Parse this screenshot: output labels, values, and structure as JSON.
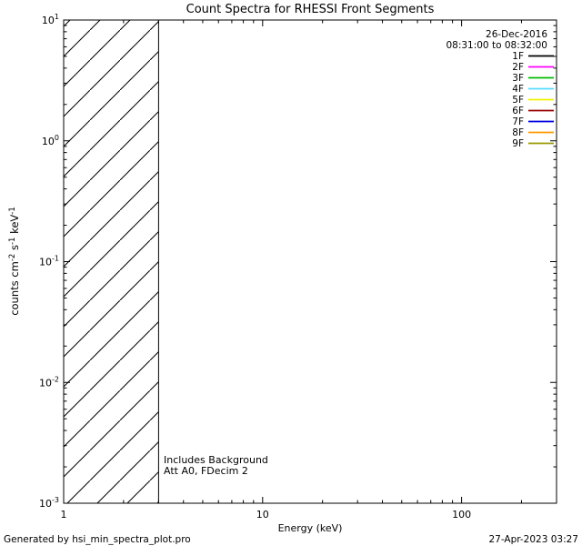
{
  "chart_data": {
    "type": "line",
    "title": "Count Spectra for RHESSI Front Segments",
    "xlabel": "Energy (keV)",
    "ylabel_parts": [
      {
        "text": "counts cm",
        "sup": false
      },
      {
        "text": "-2",
        "sup": true
      },
      {
        "text": " s",
        "sup": false
      },
      {
        "text": "-1",
        "sup": true
      },
      {
        "text": " keV",
        "sup": false
      },
      {
        "text": "-1",
        "sup": true
      }
    ],
    "x_scale": "log",
    "y_scale": "log",
    "xlim": [
      1,
      300
    ],
    "ylim_exp": [
      -3,
      1
    ],
    "x_major_ticks": [
      1,
      10,
      100
    ],
    "x_tick_labels": [
      "1",
      "10",
      "100"
    ],
    "y_major_exponents": [
      1,
      0,
      -1,
      -2,
      -3
    ],
    "grid": false,
    "background_color": "#ffffff",
    "axis_color": "#000000",
    "hatch_region": {
      "x_from": 1,
      "x_to": 3,
      "style": "diagonal-hatch"
    },
    "series": [],
    "legend": {
      "position": "top-right-inside",
      "date": "26-Dec-2016",
      "time_range": "08:31:00 to 08:32:00",
      "entries": [
        {
          "label": "1F",
          "color": "#000000"
        },
        {
          "label": "2F",
          "color": "#ff00ff"
        },
        {
          "label": "3F",
          "color": "#00bb00"
        },
        {
          "label": "4F",
          "color": "#55ddff"
        },
        {
          "label": "5F",
          "color": "#f2f200"
        },
        {
          "label": "6F",
          "color": "#990000"
        },
        {
          "label": "7F",
          "color": "#0000dd"
        },
        {
          "label": "8F",
          "color": "#ff9900"
        },
        {
          "label": "9F",
          "color": "#999900"
        }
      ]
    },
    "annotations": [
      "Includes Background",
      "Att A0, FDecim 2"
    ]
  },
  "footer": {
    "left": "Generated by hsi_min_spectra_plot.pro",
    "right": "27-Apr-2023 03:27"
  }
}
